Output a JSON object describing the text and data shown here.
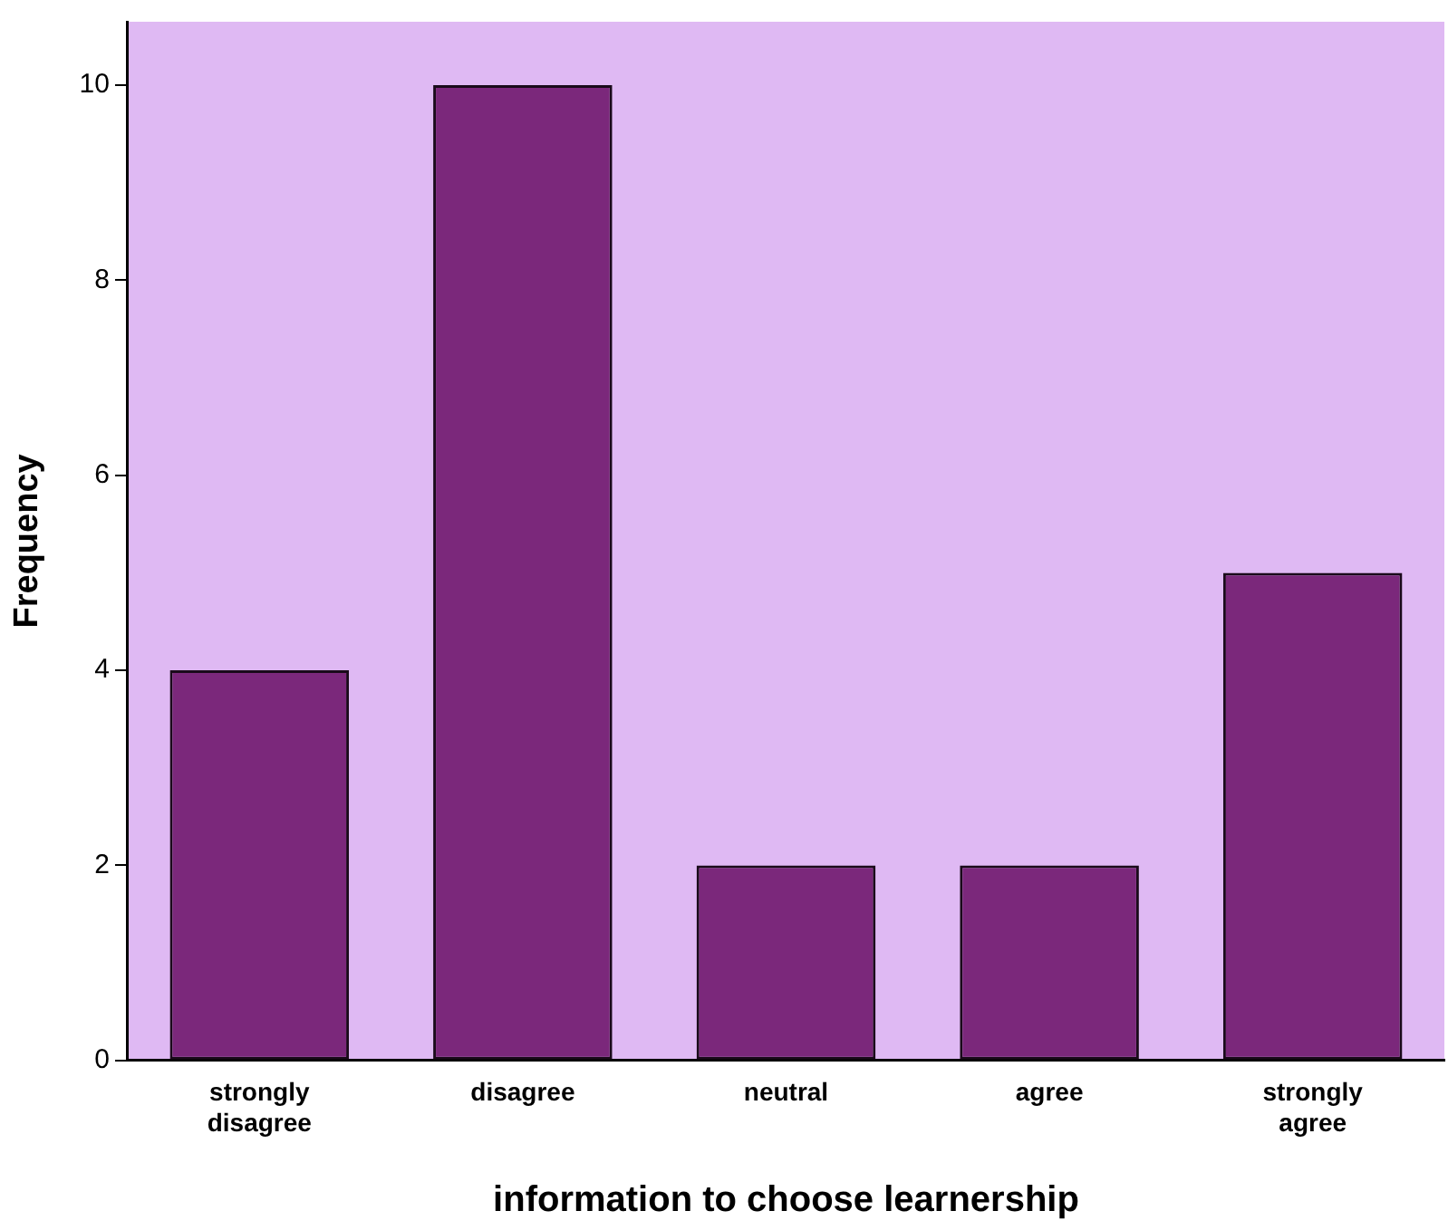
{
  "chart_data": {
    "type": "bar",
    "xlabel": "information to choose learnership",
    "ylabel": "Frequency",
    "categories": [
      "strongly disagree",
      "disagree",
      "neutral",
      "agree",
      "strongly agree"
    ],
    "values": [
      4,
      10,
      2,
      2,
      5
    ],
    "color": "#7b287b",
    "ylim": [
      0,
      10.65
    ],
    "yticks": [
      0,
      2,
      4,
      6,
      8,
      10
    ],
    "grid": false,
    "legend": false
  }
}
